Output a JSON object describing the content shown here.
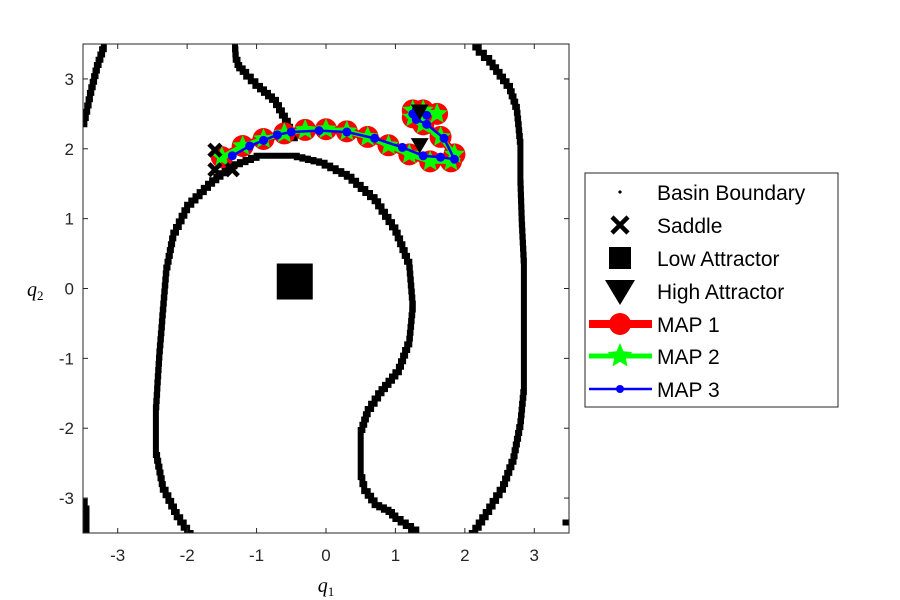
{
  "chart_data": {
    "type": "line",
    "xlabel": {
      "symbol": "q",
      "sub": "1"
    },
    "ylabel": {
      "symbol": "q",
      "sub": "2"
    },
    "xlim": [
      -3.5,
      3.5
    ],
    "ylim": [
      -3.5,
      3.5
    ],
    "xticks": [
      -3,
      -2,
      -1,
      0,
      1,
      2,
      3
    ],
    "yticks": [
      -3,
      -2,
      -1,
      0,
      1,
      2,
      3
    ],
    "xtick_labels": [
      "-3",
      "-2",
      "-1",
      "0",
      "1",
      "2",
      "3"
    ],
    "ytick_labels": [
      "-3",
      "-2",
      "-1",
      "0",
      "1",
      "2",
      "3"
    ],
    "grid": false,
    "legend_position": "right",
    "colors": {
      "boundary": "#000000",
      "map1": "#ff0000",
      "map2": "#00ff00",
      "map3": "#0000ff"
    },
    "basin_boundary": [
      {
        "name": "inner",
        "x": [
          -1.95,
          -2.15,
          -2.35,
          -2.45,
          -2.45,
          -2.4,
          -2.35,
          -2.3,
          -2.2,
          -2.0,
          -1.7,
          -1.4,
          -1.0,
          -0.5,
          -0.1,
          0.3,
          0.7,
          1.0,
          1.2,
          1.25,
          1.2,
          1.05,
          0.8,
          0.6,
          0.5,
          0.5,
          0.5,
          0.55,
          0.7,
          0.9,
          1.0,
          1.15,
          1.3
        ],
        "y": [
          -3.5,
          -3.2,
          -2.8,
          -2.3,
          -1.7,
          -0.9,
          -0.3,
          0.3,
          0.8,
          1.2,
          1.5,
          1.75,
          1.9,
          1.9,
          1.8,
          1.6,
          1.25,
          0.8,
          0.3,
          -0.3,
          -0.8,
          -1.2,
          -1.5,
          -1.8,
          -2.1,
          -2.4,
          -2.7,
          -2.9,
          -3.1,
          -3.2,
          -3.3,
          -3.4,
          -3.5
        ]
      },
      {
        "name": "outer",
        "x": [
          -0.45,
          -0.55,
          -0.72,
          -0.95,
          -1.15,
          -1.25,
          -1.3,
          -1.31
        ],
        "y": [
          2.15,
          2.4,
          2.7,
          2.9,
          3.1,
          3.2,
          3.35,
          3.5
        ]
      },
      {
        "name": "right",
        "x": [
          2.1,
          2.3,
          2.55,
          2.7,
          2.8,
          2.85,
          2.85,
          2.85,
          2.85,
          2.82,
          2.8,
          2.8,
          2.75,
          2.65,
          2.5,
          2.35,
          2.2,
          2.15
        ],
        "y": [
          -3.5,
          -3.2,
          -2.8,
          -2.4,
          -1.9,
          -1.4,
          -0.8,
          -0.2,
          0.4,
          1.0,
          1.6,
          2.1,
          2.6,
          2.9,
          3.1,
          3.3,
          3.45,
          3.5
        ]
      },
      {
        "name": "left-top",
        "x": [
          -3.5,
          -3.4,
          -3.3,
          -3.2
        ],
        "y": [
          2.35,
          2.8,
          3.2,
          3.5
        ]
      },
      {
        "name": "left-bottom",
        "x": [
          -3.5,
          -3.45,
          -3.45
        ],
        "y": [
          -3.05,
          -3.25,
          -3.5
        ]
      },
      {
        "name": "right-bottom",
        "x": [
          3.45,
          3.5
        ],
        "y": [
          -3.35,
          -3.35
        ]
      }
    ],
    "saddle": [
      {
        "x": -1.6,
        "y": 1.98
      },
      {
        "x": -1.6,
        "y": 1.7
      },
      {
        "x": -1.35,
        "y": 1.7
      }
    ],
    "low_attractor": [
      {
        "x": -0.45,
        "y": 0.1
      }
    ],
    "high_attractor": [
      {
        "x": 1.35,
        "y": 2.53
      },
      {
        "x": 1.35,
        "y": 2.05
      }
    ],
    "series": [
      {
        "name": "MAP 1",
        "color": "#ff0000",
        "x": [
          -1.5,
          -1.2,
          -0.9,
          -0.6,
          -0.3,
          0.0,
          0.3,
          0.6,
          0.9,
          1.2,
          1.5,
          1.8,
          1.85,
          1.65,
          1.4,
          1.25,
          1.25,
          1.4,
          1.6
        ],
        "y": [
          1.88,
          2.04,
          2.14,
          2.22,
          2.27,
          2.28,
          2.25,
          2.17,
          2.05,
          1.92,
          1.82,
          1.82,
          1.92,
          2.17,
          2.35,
          2.45,
          2.55,
          2.55,
          2.5
        ]
      },
      {
        "name": "MAP 2",
        "color": "#00ff00",
        "x": [
          -1.5,
          -1.2,
          -0.9,
          -0.6,
          -0.3,
          0.0,
          0.3,
          0.6,
          0.9,
          1.2,
          1.5,
          1.8,
          1.85,
          1.65,
          1.4,
          1.25,
          1.25,
          1.4,
          1.6
        ],
        "y": [
          1.88,
          2.04,
          2.14,
          2.22,
          2.27,
          2.28,
          2.25,
          2.17,
          2.05,
          1.92,
          1.82,
          1.82,
          1.92,
          2.17,
          2.35,
          2.45,
          2.55,
          2.55,
          2.5
        ]
      },
      {
        "name": "MAP 3",
        "color": "#0000ff",
        "x": [
          -1.35,
          -1.1,
          -0.9,
          -0.7,
          -0.5,
          -0.1,
          0.3,
          0.7,
          1.1,
          1.4,
          1.65,
          1.85,
          1.7,
          1.45,
          1.3,
          1.25,
          1.3,
          1.45
        ],
        "y": [
          1.9,
          2.04,
          2.12,
          2.2,
          2.24,
          2.26,
          2.24,
          2.15,
          2.02,
          1.9,
          1.88,
          1.85,
          2.15,
          2.35,
          2.42,
          2.5,
          2.55,
          2.48
        ]
      }
    ],
    "legend": [
      {
        "key": "boundary",
        "label": "Basin Boundary"
      },
      {
        "key": "saddle",
        "label": "Saddle"
      },
      {
        "key": "low",
        "label": "Low Attractor"
      },
      {
        "key": "high",
        "label": "High Attractor"
      },
      {
        "key": "map1",
        "label": "MAP 1"
      },
      {
        "key": "map2",
        "label": "MAP 2"
      },
      {
        "key": "map3",
        "label": "MAP 3"
      }
    ]
  }
}
